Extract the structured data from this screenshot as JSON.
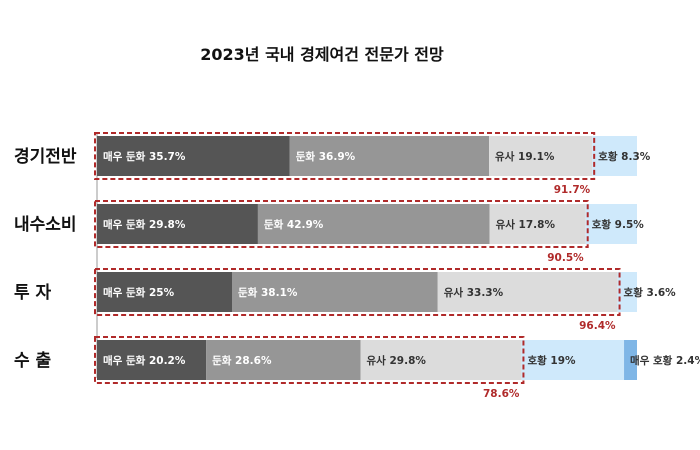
{
  "chart_data": {
    "type": "bar",
    "stacked": true,
    "orientation": "horizontal",
    "title": "2023년 국내 경제여건 전문가 전망",
    "categories": [
      "경기전반",
      "내수소비",
      "투 자",
      "수 출"
    ],
    "series": [
      {
        "name": "매우 둔화",
        "values": [
          35.7,
          29.8,
          25,
          20.2
        ],
        "color": "#555555"
      },
      {
        "name": "둔화",
        "values": [
          36.9,
          42.9,
          38.1,
          28.6
        ],
        "color": "#969696"
      },
      {
        "name": "유사",
        "values": [
          19.1,
          17.8,
          33.3,
          29.8
        ],
        "color": "#dcdcdc"
      },
      {
        "name": "호황",
        "values": [
          8.3,
          9.5,
          3.6,
          19
        ],
        "color": "#cfe9fb"
      },
      {
        "name": "매우 호황",
        "values": [
          0,
          0,
          0,
          2.4
        ],
        "color": "#7fb6e6"
      }
    ],
    "segment_labels": [
      [
        "매우 둔화 35.7%",
        "둔화 36.9%",
        "유사 19.1%",
        "호황 8.3%",
        ""
      ],
      [
        "매우 둔화 29.8%",
        "둔화 42.9%",
        "유사 17.8%",
        "호황 9.5%",
        ""
      ],
      [
        "매우 둔화 25%",
        "둔화 38.1%",
        "유사 33.3%",
        "호황 3.6%",
        ""
      ],
      [
        "매우 둔화 20.2%",
        "둔화 28.6%",
        "유사 29.8%",
        "호황 19%",
        "매우 호황 2.4%"
      ]
    ],
    "highlight_totals": [
      "91.7%",
      "90.5%",
      "96.4%",
      "78.6%"
    ],
    "highlight_color": "#b02a2a",
    "xlim": [
      0,
      100
    ],
    "grid": false,
    "legend": "none"
  }
}
